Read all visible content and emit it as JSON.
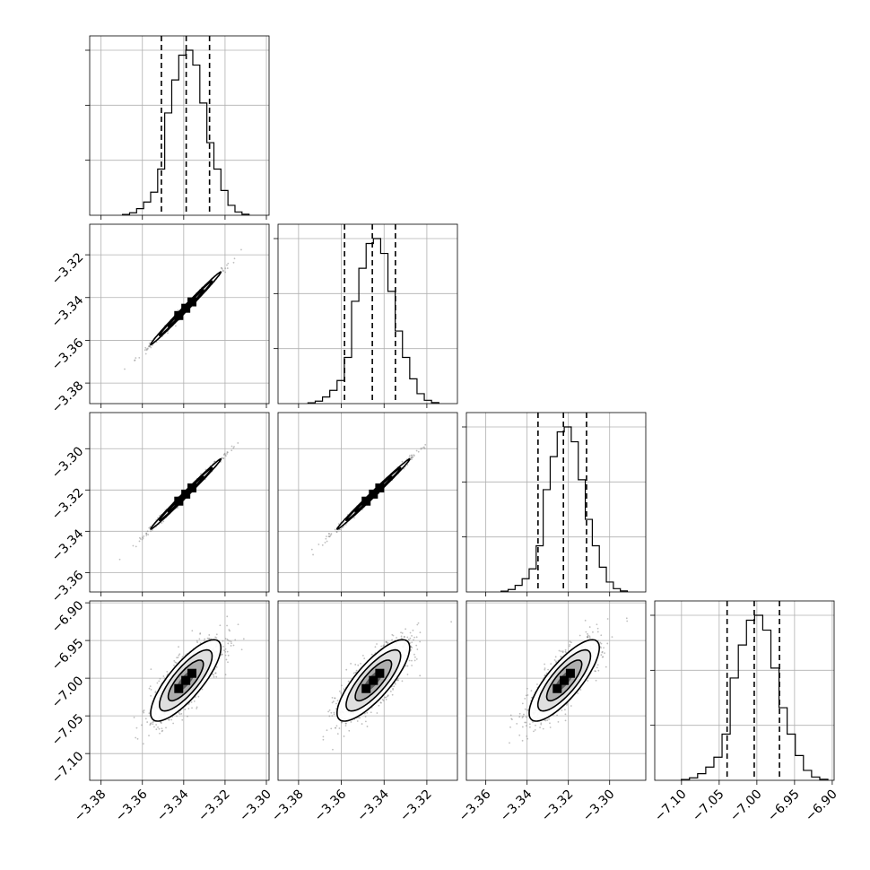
{
  "chart_data": {
    "type": "corner",
    "parameters": 4,
    "grid": true,
    "colors": {
      "line": "#000000",
      "grid": "#b0b0b0",
      "point": "#8a8a8a",
      "frame": "#000000"
    },
    "ticks": [
      {
        "values": [
          -3.38,
          -3.36,
          -3.34,
          -3.32,
          -3.3
        ],
        "labels": [
          "−3.38",
          "−3.36",
          "−3.34",
          "−3.32",
          "−3.30"
        ]
      },
      {
        "values": [
          -3.38,
          -3.36,
          -3.34,
          -3.32
        ],
        "labels": [
          "−3.38",
          "−3.36",
          "−3.34",
          "−3.32"
        ]
      },
      {
        "values": [
          -3.36,
          -3.34,
          -3.32,
          -3.3
        ],
        "labels": [
          "−3.36",
          "−3.34",
          "−3.32",
          "−3.30"
        ]
      },
      {
        "values": [
          -7.1,
          -7.05,
          -7.0,
          -6.95,
          -6.9
        ],
        "labels": [
          "−7.10",
          "−7.05",
          "−7.00",
          "−6.95",
          "−6.90"
        ]
      }
    ],
    "ranges": [
      [
        -3.3855,
        -3.2987
      ],
      [
        -3.3896,
        -3.3057
      ],
      [
        -3.3694,
        -3.2825
      ],
      [
        -7.1355,
        -6.8975
      ]
    ],
    "means": [
      -3.339,
      -3.345,
      -3.322,
      -7.003
    ],
    "sigmas": [
      0.0085,
      0.0085,
      0.0085,
      0.027
    ],
    "quantiles": [
      [
        -3.3508,
        -3.3388,
        -3.3275
      ],
      [
        -3.3585,
        -3.3455,
        -3.3347
      ],
      [
        -3.3347,
        -3.3224,
        -3.3112
      ],
      [
        -7.0395,
        -7.0035,
        -6.97
      ]
    ],
    "correlations": [
      [
        1.0,
        0.995,
        0.995,
        0.8
      ],
      [
        0.995,
        1.0,
        0.995,
        0.8
      ],
      [
        0.995,
        0.995,
        1.0,
        0.8
      ],
      [
        0.8,
        0.8,
        0.8,
        1.0
      ]
    ],
    "histograms": [
      [
        0.005,
        0.015,
        0.04,
        0.08,
        0.14,
        0.28,
        0.62,
        0.82,
        0.97,
        1.0,
        0.91,
        0.68,
        0.44,
        0.28,
        0.15,
        0.06,
        0.02,
        0.006
      ],
      [
        0.005,
        0.015,
        0.04,
        0.08,
        0.14,
        0.28,
        0.62,
        0.82,
        0.97,
        1.0,
        0.91,
        0.68,
        0.44,
        0.28,
        0.15,
        0.06,
        0.02,
        0.006
      ],
      [
        0.005,
        0.015,
        0.04,
        0.08,
        0.14,
        0.28,
        0.62,
        0.82,
        0.97,
        1.0,
        0.91,
        0.68,
        0.44,
        0.28,
        0.15,
        0.06,
        0.02,
        0.006
      ],
      [
        0.005,
        0.015,
        0.04,
        0.08,
        0.14,
        0.28,
        0.62,
        0.82,
        0.97,
        1.0,
        0.91,
        0.68,
        0.44,
        0.28,
        0.15,
        0.06,
        0.02,
        0.006
      ]
    ]
  }
}
